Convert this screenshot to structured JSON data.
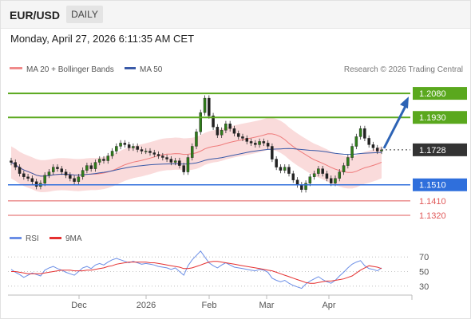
{
  "header": {
    "symbol": "EUR/USD",
    "period": "DAILY"
  },
  "datetime": "Monday, April 27, 2026 6:11:35 AM CET",
  "legend": {
    "bb_label": "MA 20 + Bollinger Bands",
    "ma50_label": "MA 50",
    "credit": "Research © 2026 Trading Central"
  },
  "rsi_legend": {
    "rsi_label": "RSI",
    "ma_label": "9MA"
  },
  "colors": {
    "resistance": "#5aa81e",
    "support": "#2f6fdc",
    "minor_support": "#e05858",
    "current": "#333333",
    "candle": "#2f7d1a",
    "bands": "#f8cfcf",
    "ma20": "#ef7b7b",
    "ma50": "#3a5aa8",
    "rsi": "#6b8ee6",
    "rsi_ma": "#e53030",
    "arrow": "#2d63b5"
  },
  "chart_data": [
    {
      "type": "candlestick",
      "title": "",
      "xlabel": "",
      "ylabel": "",
      "ylim": [
        1.128,
        1.214
      ],
      "x_ticks": [
        "Dec",
        "2026",
        "Feb",
        "Mar",
        "Apr"
      ],
      "overlays": [
        "MA 20 + Bollinger Bands",
        "MA 50"
      ],
      "levels": [
        {
          "label": "1.2080",
          "value": 1.208,
          "kind": "resistance"
        },
        {
          "label": "1.1930",
          "value": 1.193,
          "kind": "resistance"
        },
        {
          "label": "1.1728",
          "value": 1.1728,
          "kind": "current"
        },
        {
          "label": "1.1510",
          "value": 1.151,
          "kind": "support"
        },
        {
          "label": "1.1410",
          "value": 1.141,
          "kind": "support-minor"
        },
        {
          "label": "1.1320",
          "value": 1.132,
          "kind": "support-minor"
        }
      ],
      "close": [
        1.165,
        1.162,
        1.158,
        1.156,
        1.155,
        1.153,
        1.15,
        1.152,
        1.157,
        1.159,
        1.162,
        1.161,
        1.159,
        1.157,
        1.155,
        1.153,
        1.156,
        1.16,
        1.163,
        1.161,
        1.165,
        1.167,
        1.166,
        1.169,
        1.172,
        1.175,
        1.177,
        1.176,
        1.174,
        1.175,
        1.173,
        1.172,
        1.172,
        1.171,
        1.17,
        1.169,
        1.168,
        1.167,
        1.165,
        1.166,
        1.163,
        1.159,
        1.168,
        1.175,
        1.184,
        1.196,
        1.205,
        1.194,
        1.187,
        1.182,
        1.185,
        1.189,
        1.186,
        1.183,
        1.181,
        1.18,
        1.178,
        1.177,
        1.176,
        1.178,
        1.177,
        1.175,
        1.167,
        1.162,
        1.16,
        1.162,
        1.158,
        1.154,
        1.151,
        1.148,
        1.152,
        1.156,
        1.158,
        1.161,
        1.158,
        1.155,
        1.152,
        1.155,
        1.159,
        1.163,
        1.168,
        1.175,
        1.181,
        1.186,
        1.18,
        1.176,
        1.174,
        1.172,
        1.1728
      ],
      "projection": {
        "from": 1.1728,
        "to": 1.208,
        "direction": "up"
      },
      "bands_width": 0.01
    },
    {
      "type": "line",
      "title": "",
      "ylim": [
        20,
        80
      ],
      "y_ticks": [
        70,
        50,
        30
      ],
      "series": [
        {
          "name": "RSI",
          "values": [
            53,
            49,
            46,
            42,
            45,
            48,
            46,
            44,
            52,
            55,
            57,
            54,
            52,
            49,
            47,
            45,
            50,
            55,
            57,
            54,
            59,
            61,
            59,
            63,
            66,
            68,
            66,
            64,
            62,
            64,
            62,
            60,
            61,
            60,
            59,
            57,
            56,
            55,
            53,
            55,
            50,
            45,
            58,
            66,
            72,
            78,
            70,
            62,
            58,
            55,
            59,
            62,
            59,
            56,
            55,
            54,
            53,
            52,
            51,
            53,
            52,
            49,
            41,
            38,
            36,
            38,
            34,
            31,
            29,
            27,
            33,
            37,
            40,
            43,
            39,
            36,
            34,
            38,
            44,
            49,
            55,
            60,
            63,
            65,
            58,
            54,
            53,
            51,
            55
          ]
        },
        {
          "name": "9MA",
          "values": [
            50,
            50,
            49,
            48,
            47,
            47,
            47,
            47,
            48,
            49,
            50,
            51,
            52,
            52,
            52,
            51,
            51,
            51,
            52,
            52,
            53,
            54,
            55,
            57,
            58,
            60,
            61,
            62,
            63,
            63,
            63,
            63,
            63,
            62,
            62,
            61,
            60,
            59,
            58,
            57,
            56,
            54,
            54,
            55,
            57,
            59,
            61,
            63,
            64,
            64,
            63,
            62,
            61,
            60,
            59,
            58,
            57,
            56,
            55,
            54,
            53,
            52,
            51,
            49,
            47,
            45,
            43,
            41,
            39,
            37,
            35,
            34,
            34,
            35,
            36,
            37,
            37,
            38,
            39,
            40,
            42,
            44,
            48,
            52,
            55,
            58,
            57,
            56,
            54
          ]
        }
      ]
    }
  ]
}
